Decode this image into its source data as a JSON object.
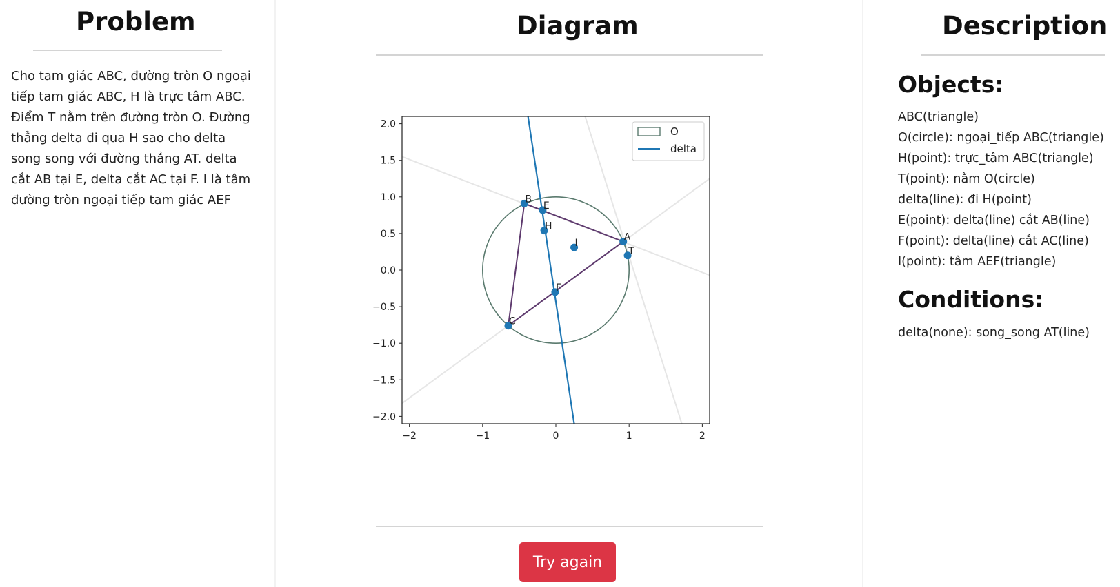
{
  "problem": {
    "title": "Problem",
    "text": "Cho tam giác ABC, đường tròn O ngoại tiếp tam giác ABC, H là trực tâm ABC. Điểm T nằm trên đường tròn O. Đường thẳng delta đi qua H sao cho delta song song với đường thẳng AT. delta cắt AB tại E, delta cắt AC tại F. I là tâm đường tròn ngoại tiếp tam giác AEF"
  },
  "diagram": {
    "title": "Diagram",
    "try_again_label": "Try again"
  },
  "description": {
    "title": "Description",
    "objects_heading": "Objects:",
    "objects": [
      "ABC(triangle)",
      "O(circle): ngoại_tiếp ABC(triangle)",
      "H(point): trực_tâm ABC(triangle)",
      "T(point): nằm O(circle)",
      "delta(line): đi H(point)",
      "E(point): delta(line) cắt AB(line)",
      "F(point): delta(line) cắt AC(line)",
      "I(point): tâm AEF(triangle)"
    ],
    "conditions_heading": "Conditions:",
    "conditions": [
      "delta(none): song_song AT(line)"
    ]
  },
  "chart_data": {
    "type": "scatter",
    "xlim": [
      -2.1,
      2.1
    ],
    "ylim": [
      -2.1,
      2.1
    ],
    "xticks": [
      -2,
      -1,
      0,
      1,
      2
    ],
    "yticks": [
      -2.0,
      -1.5,
      -1.0,
      -0.5,
      0.0,
      0.5,
      1.0,
      1.5,
      2.0
    ],
    "xtick_labels": [
      "−2",
      "−1",
      "0",
      "1",
      "2"
    ],
    "ytick_labels": [
      "−2.0",
      "−1.5",
      "−1.0",
      "−0.5",
      "0.0",
      "0.5",
      "1.0",
      "1.5",
      "2.0"
    ],
    "legend_position": "upper right",
    "legend": [
      {
        "name": "O",
        "kind": "circle",
        "color": "#5a7a6e"
      },
      {
        "name": "delta",
        "kind": "line",
        "color": "#1f77b4"
      }
    ],
    "point_color": "#1f77b4",
    "triangle_color": "#5e3a6e",
    "guide_line_color": "#e6e6e6",
    "circle": {
      "cx": 0,
      "cy": 0,
      "r": 1
    },
    "points": [
      {
        "label": "A",
        "x": 0.92,
        "y": 0.39
      },
      {
        "label": "B",
        "x": -0.43,
        "y": 0.91
      },
      {
        "label": "C",
        "x": -0.65,
        "y": -0.76
      },
      {
        "label": "E",
        "x": -0.18,
        "y": 0.82
      },
      {
        "label": "H",
        "x": -0.16,
        "y": 0.54
      },
      {
        "label": "I",
        "x": 0.25,
        "y": 0.31
      },
      {
        "label": "T",
        "x": 0.98,
        "y": 0.2
      },
      {
        "label": "F",
        "x": -0.01,
        "y": -0.3
      }
    ],
    "triangle": [
      "A",
      "B",
      "C"
    ],
    "delta": [
      [
        -0.38,
        2.1
      ],
      [
        0.25,
        -2.1
      ]
    ],
    "guide_lines": [
      [
        [
          -2.1,
          1.55
        ],
        [
          2.1,
          -0.07
        ]
      ],
      [
        [
          -2.1,
          -1.82
        ],
        [
          2.1,
          1.25
        ]
      ],
      [
        [
          0.4,
          2.1
        ],
        [
          1.72,
          -2.1
        ]
      ]
    ]
  }
}
